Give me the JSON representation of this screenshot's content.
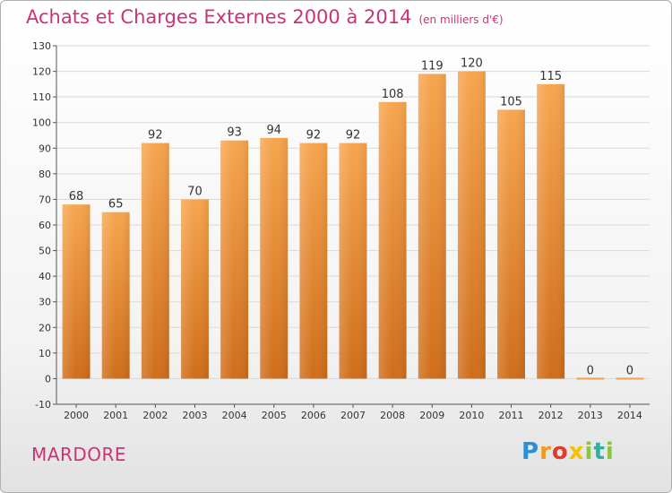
{
  "title": "Achats et Charges Externes 2000 à 2014",
  "unit_note": "(en milliers d'€)",
  "commune": "MARDORE",
  "logo": {
    "text": "Proxiti"
  },
  "colors": {
    "title": "#cc3377",
    "bar_top": "#f7a54e",
    "bar_bottom": "#cf6d1a",
    "grid": "#d9d9d9",
    "axis_text": "#333333"
  },
  "chart_data": {
    "type": "bar",
    "title": "Achats et Charges Externes 2000 à 2014",
    "xlabel": "",
    "ylabel": "",
    "categories": [
      "2000",
      "2001",
      "2002",
      "2003",
      "2004",
      "2005",
      "2006",
      "2007",
      "2008",
      "2009",
      "2010",
      "2011",
      "2012",
      "2013",
      "2014"
    ],
    "values": [
      68,
      65,
      92,
      70,
      93,
      94,
      92,
      92,
      108,
      119,
      120,
      105,
      115,
      0,
      0
    ],
    "ylim": [
      -10,
      130
    ],
    "yticks": [
      -10,
      0,
      10,
      20,
      30,
      40,
      50,
      60,
      70,
      80,
      90,
      100,
      110,
      120,
      130
    ],
    "grid": true,
    "data_labels": true
  }
}
